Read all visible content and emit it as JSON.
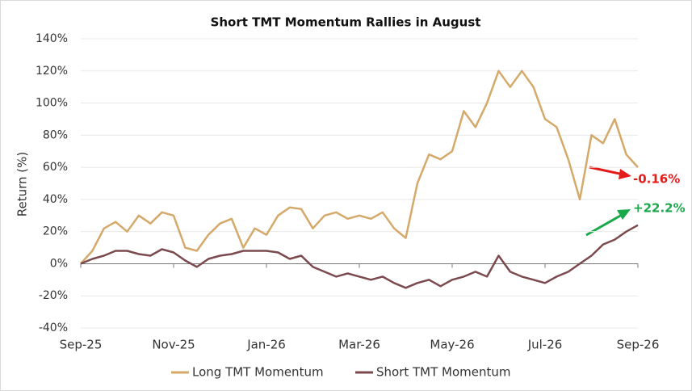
{
  "chart_data": {
    "type": "line",
    "title": "Short TMT Momentum Rallies in August",
    "y_label": "Return (%)",
    "categories": [
      "Sep-25",
      null,
      null,
      null,
      null,
      null,
      null,
      null,
      "Nov-25",
      null,
      null,
      null,
      null,
      null,
      null,
      null,
      "Jan-26",
      null,
      null,
      null,
      null,
      null,
      null,
      null,
      "Mar-26",
      null,
      null,
      null,
      null,
      null,
      null,
      null,
      "May-26",
      null,
      null,
      null,
      null,
      null,
      null,
      null,
      "Jul-26",
      null,
      null,
      null,
      null,
      null,
      null,
      null,
      "Sep-26"
    ],
    "series": [
      {
        "name": "Long TMT Momentum",
        "color": "#d4a96a",
        "values": [
          0,
          8,
          22,
          26,
          20,
          30,
          25,
          32,
          30,
          10,
          8,
          18,
          25,
          28,
          10,
          22,
          18,
          30,
          35,
          34,
          22,
          30,
          32,
          28,
          30,
          28,
          32,
          22,
          16,
          50,
          68,
          65,
          70,
          95,
          85,
          100,
          120,
          110,
          120,
          110,
          90,
          85,
          65,
          40,
          80,
          75,
          90,
          68,
          60
        ]
      },
      {
        "name": "Short TMT Momentum",
        "color": "#7b4a4e",
        "values": [
          0,
          3,
          5,
          8,
          8,
          6,
          5,
          9,
          7,
          2,
          -2,
          3,
          5,
          6,
          8,
          8,
          8,
          7,
          3,
          5,
          -2,
          -5,
          -8,
          -6,
          -8,
          -10,
          -8,
          -12,
          -15,
          -12,
          -10,
          -14,
          -10,
          -8,
          -5,
          -8,
          5,
          -5,
          -8,
          -10,
          -12,
          -8,
          -5,
          0,
          5,
          12,
          15,
          20,
          24
        ]
      }
    ],
    "ylim": [
      -40,
      140
    ],
    "yticks": [
      {
        "value": -40,
        "label": "-40%"
      },
      {
        "value": -20,
        "label": "-20%"
      },
      0,
      {
        "value": 0,
        "label": "0%"
      },
      {
        "value": 20,
        "label": "20%"
      },
      {
        "value": 40,
        "label": "40%"
      },
      {
        "value": 60,
        "label": "60%"
      },
      {
        "value": 80,
        "label": "80%"
      },
      {
        "value": 100,
        "label": "100%"
      },
      {
        "value": 120,
        "label": "120%"
      },
      {
        "value": 140,
        "label": "140%"
      }
    ],
    "grid": true,
    "legend": "bottom",
    "annotations": [
      {
        "text": "-0.16%",
        "color": "#e31b1b"
      },
      {
        "text": "+22.2%",
        "color": "#1aa84a"
      }
    ]
  }
}
